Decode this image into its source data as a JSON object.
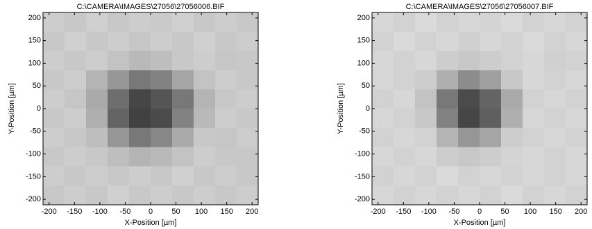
{
  "chart_data": [
    {
      "type": "heatmap",
      "title": "C:\\CAMERA\\IMAGES\\27056\\27056006.BIF",
      "xlabel": "X-Position [µm]",
      "ylabel": "Y-Position [µm]",
      "xlim": [
        -212,
        212
      ],
      "ylim": [
        -212,
        212
      ],
      "xticks": [
        -200,
        -150,
        -100,
        -50,
        0,
        50,
        100,
        150,
        200
      ],
      "yticks": [
        -200,
        -150,
        -100,
        -50,
        0,
        50,
        100,
        150,
        200
      ],
      "z": [
        [
          205,
          200,
          208,
          200,
          205,
          202,
          208,
          200,
          205,
          200
        ],
        [
          200,
          208,
          200,
          205,
          198,
          205,
          200,
          208,
          200,
          205
        ],
        [
          205,
          200,
          205,
          195,
          185,
          190,
          200,
          205,
          198,
          200
        ],
        [
          200,
          205,
          180,
          150,
          120,
          130,
          165,
          195,
          205,
          200
        ],
        [
          205,
          198,
          170,
          110,
          70,
          85,
          120,
          180,
          200,
          205
        ],
        [
          200,
          205,
          175,
          100,
          65,
          75,
          130,
          185,
          205,
          200
        ],
        [
          205,
          200,
          190,
          150,
          120,
          135,
          170,
          200,
          198,
          205
        ],
        [
          200,
          205,
          200,
          190,
          180,
          185,
          195,
          205,
          200,
          200
        ],
        [
          205,
          200,
          205,
          200,
          205,
          200,
          208,
          200,
          205,
          200
        ],
        [
          200,
          205,
          200,
          208,
          200,
          205,
          200,
          205,
          200,
          205
        ]
      ]
    },
    {
      "type": "heatmap",
      "title": "C:\\CAMERA\\IMAGES\\27056\\27056007.BIF",
      "xlabel": "X-Position [µm]",
      "ylabel": "Y-Position [µm]",
      "xlim": [
        -212,
        212
      ],
      "ylim": [
        -212,
        212
      ],
      "xticks": [
        -200,
        -150,
        -100,
        -50,
        0,
        50,
        100,
        150,
        200
      ],
      "yticks": [
        -200,
        -150,
        -100,
        -50,
        0,
        50,
        100,
        150,
        200
      ],
      "z": [
        [
          215,
          210,
          218,
          210,
          215,
          212,
          218,
          210,
          215,
          210
        ],
        [
          210,
          218,
          210,
          215,
          208,
          215,
          210,
          218,
          210,
          215
        ],
        [
          215,
          210,
          215,
          205,
          200,
          205,
          210,
          215,
          208,
          210
        ],
        [
          215,
          210,
          205,
          175,
          140,
          160,
          200,
          215,
          210,
          215
        ],
        [
          210,
          215,
          195,
          120,
          75,
          100,
          170,
          210,
          215,
          210
        ],
        [
          215,
          210,
          200,
          130,
          70,
          95,
          175,
          215,
          210,
          215
        ],
        [
          210,
          215,
          210,
          180,
          150,
          165,
          205,
          210,
          215,
          210
        ],
        [
          215,
          210,
          215,
          205,
          200,
          205,
          212,
          215,
          210,
          215
        ],
        [
          210,
          215,
          210,
          218,
          210,
          215,
          210,
          215,
          210,
          215
        ],
        [
          215,
          210,
          215,
          210,
          215,
          210,
          218,
          210,
          215,
          210
        ]
      ]
    }
  ]
}
